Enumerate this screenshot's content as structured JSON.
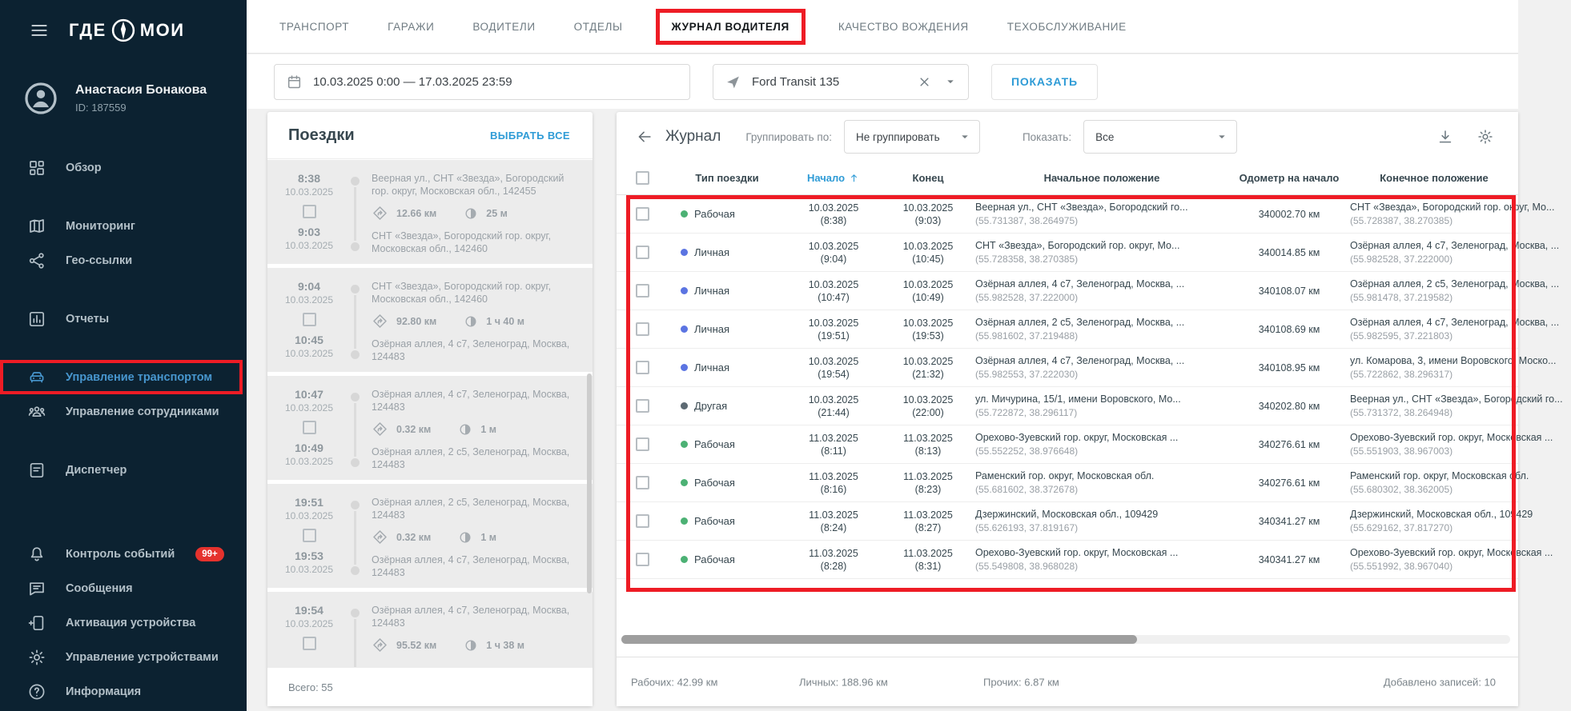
{
  "colors": {
    "sidebar_bg": "#0c2231",
    "sidebar_active": "#4796ce",
    "badge_bg": "#e5322d",
    "annotation_red": "#ee1c25",
    "accent_blue": "#2e9bd6",
    "type_green": "#4cb174",
    "type_blue": "#5b74e2",
    "type_gray": "#5d6a73"
  },
  "sidebar": {
    "logo_left": "ГДЕ",
    "logo_right": "МОИ",
    "user": {
      "name": "Анастасия Бонакова",
      "id": "ID: 187559"
    },
    "nav": [
      {
        "label": "Обзор",
        "icon": "dashboard-icon",
        "gap": "normal"
      },
      {
        "label": "Мониторинг",
        "icon": "map-icon",
        "gap": "normal"
      },
      {
        "label": "Гео-ссылки",
        "icon": "share-icon"
      },
      {
        "label": "Отчеты",
        "icon": "reports-icon",
        "gap": "normal"
      },
      {
        "label": "Управление транспортом",
        "icon": "car-icon",
        "active": true,
        "annotated": true,
        "gap": "normal"
      },
      {
        "label": "Управление сотрудниками",
        "icon": "people-icon"
      },
      {
        "label": "Диспетчер",
        "icon": "dispatcher-icon",
        "gap": "normal"
      },
      {
        "label": "Контроль событий",
        "icon": "bell-icon",
        "badge": "99+",
        "gap": "large"
      },
      {
        "label": "Сообщения",
        "icon": "messages-icon"
      },
      {
        "label": "Активация устройства",
        "icon": "device-activation-icon"
      },
      {
        "label": "Управление устройствами",
        "icon": "devices-gear-icon"
      },
      {
        "label": "Информация",
        "icon": "info-icon"
      }
    ]
  },
  "tabs": [
    {
      "label": "ТРАНСПОРТ"
    },
    {
      "label": "ГАРАЖИ"
    },
    {
      "label": "ВОДИТЕЛИ"
    },
    {
      "label": "ОТДЕЛЫ"
    },
    {
      "label": "ЖУРНАЛ ВОДИТЕЛЯ",
      "active": true,
      "annotated": true
    },
    {
      "label": "КАЧЕСТВО ВОЖДЕНИЯ"
    },
    {
      "label": "ТЕХОБСЛУЖИВАНИЕ"
    }
  ],
  "filters": {
    "date_range": "10.03.2025 0:00 — 17.03.2025 23:59",
    "vehicle": "Ford Transit 135",
    "show_button": "ПОКАЗАТЬ"
  },
  "trips_panel": {
    "title": "Поездки",
    "select_all": "ВЫБРАТЬ ВСЕ",
    "total": "Всего: 55",
    "trips": [
      {
        "start_time": "8:38",
        "start_date": "10.03.2025",
        "end_time": "9:03",
        "end_date": "10.03.2025",
        "from": "Веерная ул., СНТ «Звезда», Богородский гор. округ, Московская обл., 142455",
        "distance": "12.66 км",
        "duration": "25 м",
        "to": "СНТ «Звезда», Богородский гор. округ, Московская обл., 142460"
      },
      {
        "start_time": "9:04",
        "start_date": "10.03.2025",
        "end_time": "10:45",
        "end_date": "10.03.2025",
        "from": "СНТ «Звезда», Богородский гор. округ, Московская обл., 142460",
        "distance": "92.80 км",
        "duration": "1 ч 40 м",
        "to": "Озёрная аллея, 4 с7, Зеленоград, Москва, 124483"
      },
      {
        "start_time": "10:47",
        "start_date": "10.03.2025",
        "end_time": "10:49",
        "end_date": "10.03.2025",
        "from": "Озёрная аллея, 4 с7, Зеленоград, Москва, 124483",
        "distance": "0.32 км",
        "duration": "1 м",
        "to": "Озёрная аллея, 2 с5, Зеленоград, Москва, 124483"
      },
      {
        "start_time": "19:51",
        "start_date": "10.03.2025",
        "end_time": "19:53",
        "end_date": "10.03.2025",
        "from": "Озёрная аллея, 2 с5, Зеленоград, Москва, 124483",
        "distance": "0.32 км",
        "duration": "1 м",
        "to": "Озёрная аллея, 4 с7, Зеленоград, Москва, 124483"
      },
      {
        "start_time": "19:54",
        "start_date": "10.03.2025",
        "end_time": "",
        "end_date": "",
        "from": "Озёрная аллея, 4 с7, Зеленоград, Москва, 124483",
        "distance": "95.52 км",
        "duration": "1 ч 38 м",
        "to": ""
      }
    ]
  },
  "journal": {
    "title": "Журнал",
    "group_by_label": "Группировать по:",
    "group_by_value": "Не группировать",
    "show_label": "Показать:",
    "show_value": "Все",
    "columns": [
      "Тип поездки",
      "Начало",
      "Конец",
      "Начальное положение",
      "Одометр на начало",
      "Конечное положение"
    ],
    "sort": {
      "column": "Начало",
      "direction": "asc"
    },
    "rows": [
      {
        "type": "Рабочая",
        "type_color": "green",
        "start_date": "10.03.2025",
        "start_time": "(8:38)",
        "end_date": "10.03.2025",
        "end_time": "(9:03)",
        "from": "Веерная ул., СНТ «Звезда», Богородский го...",
        "from_coords": "(55.731387, 38.264975)",
        "odometer": "340002.70 км",
        "to": "СНТ «Звезда», Богородский гор. округ, Мо...",
        "to_coords": "(55.728387, 38.270385)"
      },
      {
        "type": "Личная",
        "type_color": "blue",
        "start_date": "10.03.2025",
        "start_time": "(9:04)",
        "end_date": "10.03.2025",
        "end_time": "(10:45)",
        "from": "СНТ «Звезда», Богородский гор. округ, Мо...",
        "from_coords": "(55.728358, 38.270385)",
        "odometer": "340014.85 км",
        "to": "Озёрная аллея, 4 с7, Зеленоград, Москва, ...",
        "to_coords": "(55.982528, 37.222000)"
      },
      {
        "type": "Личная",
        "type_color": "blue",
        "start_date": "10.03.2025",
        "start_time": "(10:47)",
        "end_date": "10.03.2025",
        "end_time": "(10:49)",
        "from": "Озёрная аллея, 4 с7, Зеленоград, Москва, ...",
        "from_coords": "(55.982528, 37.222000)",
        "odometer": "340108.07 км",
        "to": "Озёрная аллея, 2 с5, Зеленоград, Москва, ...",
        "to_coords": "(55.981478, 37.219582)"
      },
      {
        "type": "Личная",
        "type_color": "blue",
        "start_date": "10.03.2025",
        "start_time": "(19:51)",
        "end_date": "10.03.2025",
        "end_time": "(19:53)",
        "from": "Озёрная аллея, 2 с5, Зеленоград, Москва, ...",
        "from_coords": "(55.981602, 37.219488)",
        "odometer": "340108.69 км",
        "to": "Озёрная аллея, 4 с7, Зеленоград, Москва, ...",
        "to_coords": "(55.982595, 37.221803)"
      },
      {
        "type": "Личная",
        "type_color": "blue",
        "start_date": "10.03.2025",
        "start_time": "(19:54)",
        "end_date": "10.03.2025",
        "end_time": "(21:32)",
        "from": "Озёрная аллея, 4 с7, Зеленоград, Москва, ...",
        "from_coords": "(55.982553, 37.222030)",
        "odometer": "340108.95 км",
        "to": "ул. Комарова, 3, имени Воровского, Моско...",
        "to_coords": "(55.722862, 38.296317)"
      },
      {
        "type": "Другая",
        "type_color": "gray",
        "start_date": "10.03.2025",
        "start_time": "(21:44)",
        "end_date": "10.03.2025",
        "end_time": "(22:00)",
        "from": "ул. Мичурина, 15/1, имени Воровского, Мо...",
        "from_coords": "(55.722872, 38.296117)",
        "odometer": "340202.80 км",
        "to": "Веерная ул., СНТ «Звезда», Богородский го...",
        "to_coords": "(55.731372, 38.264948)"
      },
      {
        "type": "Рабочая",
        "type_color": "green",
        "start_date": "11.03.2025",
        "start_time": "(8:11)",
        "end_date": "11.03.2025",
        "end_time": "(8:13)",
        "from": "Орехово-Зуевский гор. округ, Московская ...",
        "from_coords": "(55.552252, 38.976648)",
        "odometer": "340276.61 км",
        "to": "Орехово-Зуевский гор. округ, Московская ...",
        "to_coords": "(55.551903, 38.967003)"
      },
      {
        "type": "Рабочая",
        "type_color": "green",
        "start_date": "11.03.2025",
        "start_time": "(8:16)",
        "end_date": "11.03.2025",
        "end_time": "(8:23)",
        "from": "Раменский гор. округ, Московская обл.",
        "from_coords": "(55.681602, 38.372678)",
        "odometer": "340276.61 км",
        "to": "Раменский гор. округ, Московская обл.",
        "to_coords": "(55.680302, 38.362005)"
      },
      {
        "type": "Рабочая",
        "type_color": "green",
        "start_date": "11.03.2025",
        "start_time": "(8:24)",
        "end_date": "11.03.2025",
        "end_time": "(8:27)",
        "from": "Дзержинский, Московская обл., 109429",
        "from_coords": "(55.626193, 37.819167)",
        "odometer": "340341.27 км",
        "to": "Дзержинский, Московская обл., 109429",
        "to_coords": "(55.629162, 37.817270)"
      },
      {
        "type": "Рабочая",
        "type_color": "green",
        "start_date": "11.03.2025",
        "start_time": "(8:28)",
        "end_date": "11.03.2025",
        "end_time": "(8:31)",
        "from": "Орехово-Зуевский гор. округ, Московская ...",
        "from_coords": "(55.549808, 38.968028)",
        "odometer": "340341.27 км",
        "to": "Орехово-Зуевский гор. округ, Московская ...",
        "to_coords": "(55.551992, 38.967040)"
      }
    ],
    "footer": {
      "stats": [
        "Рабочих: 42.99 км",
        "Личных: 188.96 км",
        "Прочих: 6.87 км"
      ],
      "added": "Добавлено записей: 10"
    }
  }
}
